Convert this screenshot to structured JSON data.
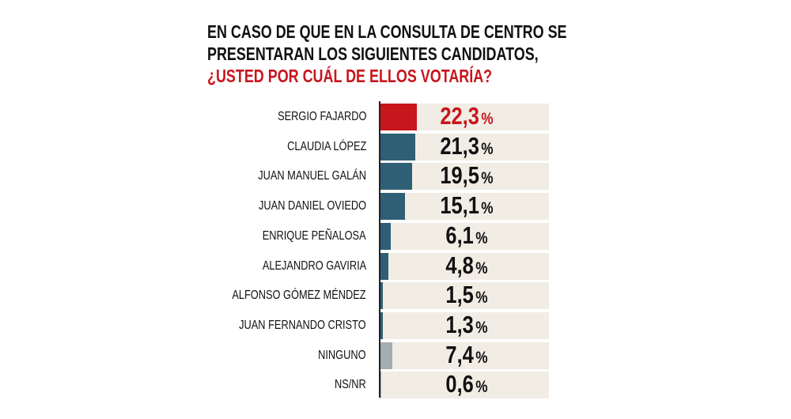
{
  "chart_data": {
    "type": "bar",
    "orientation": "horizontal",
    "title_lines": [
      "EN CASO DE QUE EN LA CONSULTA DE CENTRO SE",
      "PRESENTARAN LOS SIGUIENTES CANDIDATOS,",
      "¿USTED POR CUÁL DE ELLOS VOTARÍA?"
    ],
    "categories": [
      "SERGIO FAJARDO",
      "CLAUDIA LÓPEZ",
      "JUAN MANUEL GALÁN",
      "JUAN DANIEL OVIEDO",
      "ENRIQUE PEÑALOSA",
      "ALEJANDRO GAVIRIA",
      "ALFONSO GÓMEZ MÉNDEZ",
      "JUAN FERNANDO CRISTO",
      "NINGUNO",
      "NS/NR"
    ],
    "values": [
      22.3,
      21.3,
      19.5,
      15.1,
      6.1,
      4.8,
      1.5,
      1.3,
      7.4,
      0.6
    ],
    "value_labels": [
      "22,3",
      "21,3",
      "19,5",
      "15,1",
      "6,1",
      "4,8",
      "1,5",
      "1,3",
      "7,4",
      "0,6"
    ],
    "unit": "%",
    "xlim": [
      0,
      100
    ],
    "grid": false,
    "colors": {
      "highlight": "#c8161d",
      "default": "#2f5f75",
      "other": "#a3acb0",
      "track": "#f1ede5",
      "highlight_text": "#c8161d",
      "text": "#111111",
      "title_highlight": "#c8161d"
    }
  }
}
